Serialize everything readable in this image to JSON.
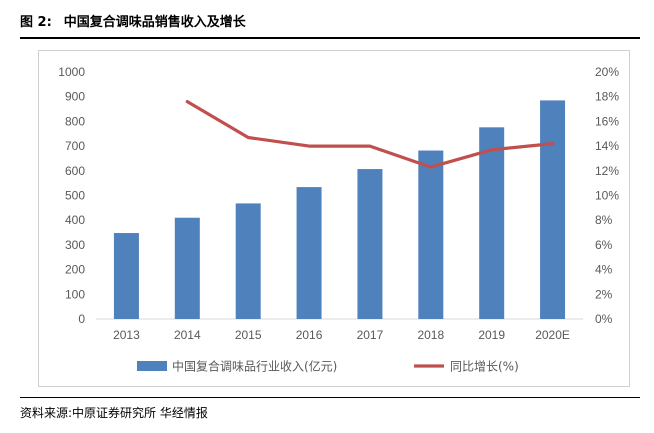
{
  "figure": {
    "label": "图 2:",
    "title": "中国复合调味品销售收入及增长",
    "source": "资料来源:中原证券研究所 华经情报"
  },
  "colors": {
    "bar": "#4f81bd",
    "line": "#c0504d",
    "axis_text": "#595959",
    "frame": "#d0d0d0"
  },
  "chart_data": {
    "type": "bar",
    "categories": [
      "2013",
      "2014",
      "2015",
      "2016",
      "2017",
      "2018",
      "2019",
      "2020E"
    ],
    "series": [
      {
        "name": "中国复合调味品行业收入(亿元)",
        "type": "bar",
        "axis": "left",
        "values": [
          348,
          410,
          468,
          534,
          607,
          682,
          776,
          885
        ]
      },
      {
        "name": "同比增长(%)",
        "type": "line",
        "axis": "right",
        "values": [
          null,
          17.6,
          14.7,
          14.0,
          14.0,
          12.3,
          13.7,
          14.2
        ]
      }
    ],
    "y_left": {
      "min": 0,
      "max": 1000,
      "step": 100,
      "tick_labels": [
        "0",
        "100",
        "200",
        "300",
        "400",
        "500",
        "600",
        "700",
        "800",
        "900",
        "1000"
      ]
    },
    "y_right": {
      "min": 0,
      "max": 20,
      "step": 2,
      "tick_labels": [
        "0%",
        "2%",
        "4%",
        "6%",
        "8%",
        "10%",
        "12%",
        "14%",
        "16%",
        "18%",
        "20%"
      ]
    },
    "legend_position": "bottom",
    "grid": false
  }
}
